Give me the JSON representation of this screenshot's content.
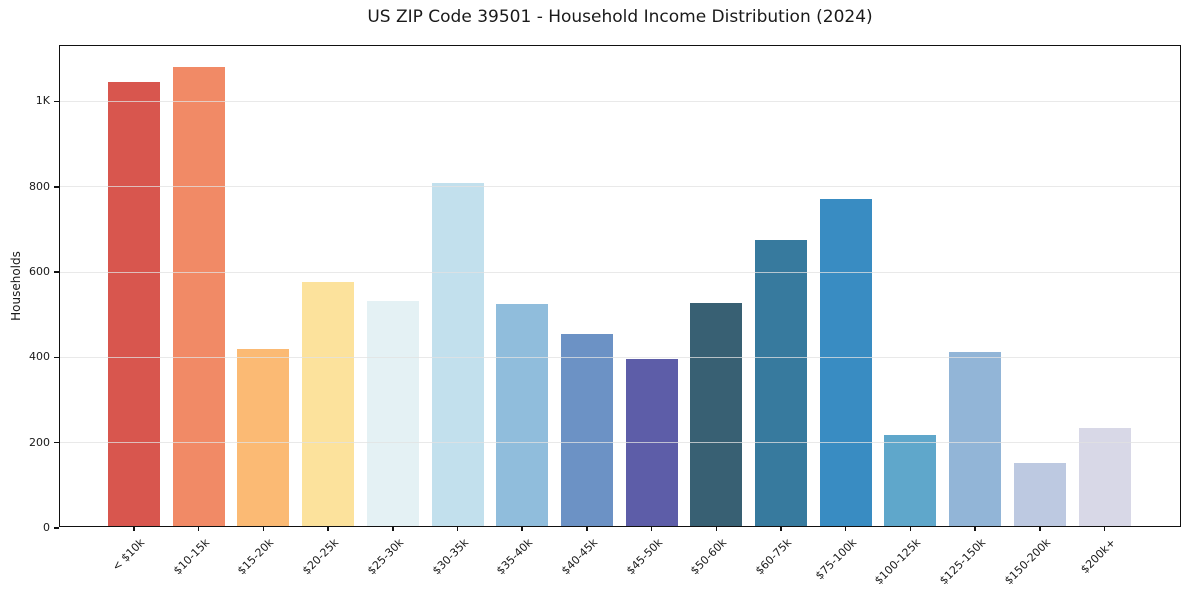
{
  "chart_data": {
    "type": "bar",
    "title": "US ZIP Code 39501 - Household Income Distribution (2024)",
    "xlabel": "",
    "ylabel": "Households",
    "categories": [
      "< $10k",
      "$10-15k",
      "$15-20k",
      "$20-25k",
      "$25-30k",
      "$30-35k",
      "$35-40k",
      "$40-45k",
      "$45-50k",
      "$50-60k",
      "$60-75k",
      "$75-100k",
      "$100-125k",
      "$125-150k",
      "$150-200k",
      "$200k+"
    ],
    "values": [
      1041,
      1077,
      414,
      572,
      528,
      804,
      521,
      451,
      391,
      523,
      671,
      767,
      214,
      407,
      148,
      229
    ],
    "bar_colors": [
      "#d8564e",
      "#f18a66",
      "#fbba74",
      "#fce29c",
      "#e4f1f4",
      "#c2e0ed",
      "#90bddc",
      "#6c92c5",
      "#5d5da8",
      "#386073",
      "#377a9e",
      "#398cc2",
      "#5fa7cb",
      "#92b5d7",
      "#bdc9e1",
      "#d8d8e7"
    ],
    "ylim": [
      0,
      1130
    ],
    "ytick_values": [
      0,
      200,
      400,
      600,
      800,
      1000
    ],
    "ytick_labels": [
      "0",
      "200",
      "400",
      "600",
      "800",
      "1K"
    ],
    "x_tick_rotation": 45,
    "grid": "horizontal",
    "legend": "none",
    "background_color": "#ffffff",
    "gridline_color": "#e5e5e5",
    "axis_color": "#111111",
    "text_color": "#1a1a1a"
  }
}
